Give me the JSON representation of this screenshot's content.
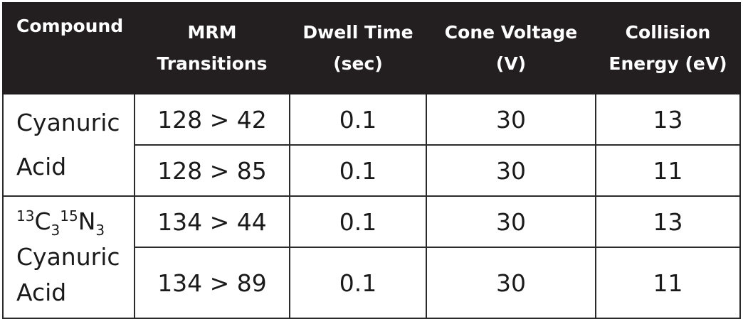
{
  "table": {
    "headers": [
      {
        "line1": "Compound",
        "line2": ""
      },
      {
        "line1": "MRM",
        "line2": "Transitions"
      },
      {
        "line1": "Dwell Time",
        "line2": "(sec)"
      },
      {
        "line1": "Cone Voltage",
        "line2": "(V)"
      },
      {
        "line1": "Collision",
        "line2": "Energy (eV)"
      }
    ],
    "groups": [
      {
        "compound_line1": "Cyanuric",
        "compound_line2": "Acid",
        "rows": [
          {
            "mrm": "128 > 42",
            "dwell": "0.1",
            "cone": "30",
            "collision": "13"
          },
          {
            "mrm": "128 > 85",
            "dwell": "0.1",
            "cone": "30",
            "collision": "11"
          }
        ]
      },
      {
        "isotope": {
          "mass1": "13",
          "el1": "C",
          "n1": "3",
          "mass2": "15",
          "el2": "N",
          "n2": "3"
        },
        "compound_line1": "Cyanuric",
        "compound_line2": "Acid",
        "rows": [
          {
            "mrm": "134 > 44",
            "dwell": "0.1",
            "cone": "30",
            "collision": "13"
          },
          {
            "mrm": "134 > 89",
            "dwell": "0.1",
            "cone": "30",
            "collision": "11"
          }
        ]
      }
    ]
  }
}
